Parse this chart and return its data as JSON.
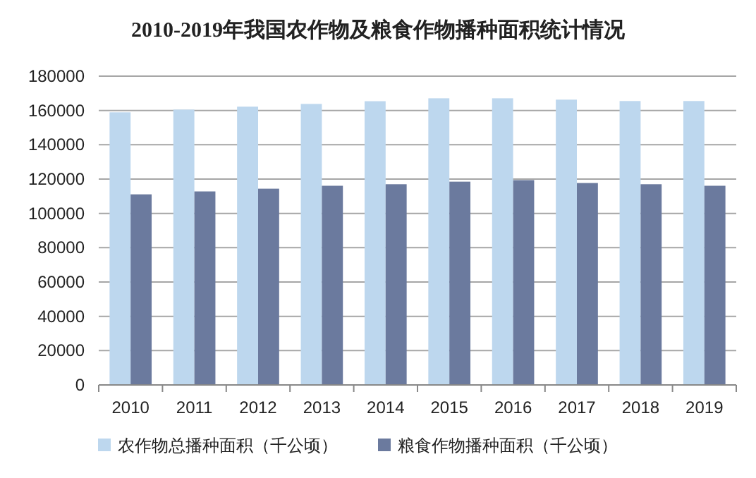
{
  "chart_data": {
    "type": "bar",
    "title": "2010-2019年我国农作物及粮食作物播种面积统计情况",
    "categories": [
      "2010",
      "2011",
      "2012",
      "2013",
      "2014",
      "2015",
      "2016",
      "2017",
      "2018",
      "2019"
    ],
    "series": [
      {
        "name": "农作物总播种面积（千公顷）",
        "color": "#bdd7ee",
        "values": [
          158900,
          160500,
          162200,
          163800,
          165400,
          167100,
          167100,
          166300,
          165500,
          165500
        ]
      },
      {
        "name": "粮食作物播种面积（千公顷）",
        "color": "#6b7a9e",
        "values": [
          111100,
          112800,
          114400,
          116100,
          117000,
          118500,
          119400,
          117700,
          117000,
          116100
        ]
      }
    ],
    "ylim": [
      0,
      180000
    ],
    "yticks": [
      0,
      20000,
      40000,
      60000,
      80000,
      100000,
      120000,
      140000,
      160000,
      180000
    ],
    "grid": "y",
    "legend": "bottom"
  }
}
